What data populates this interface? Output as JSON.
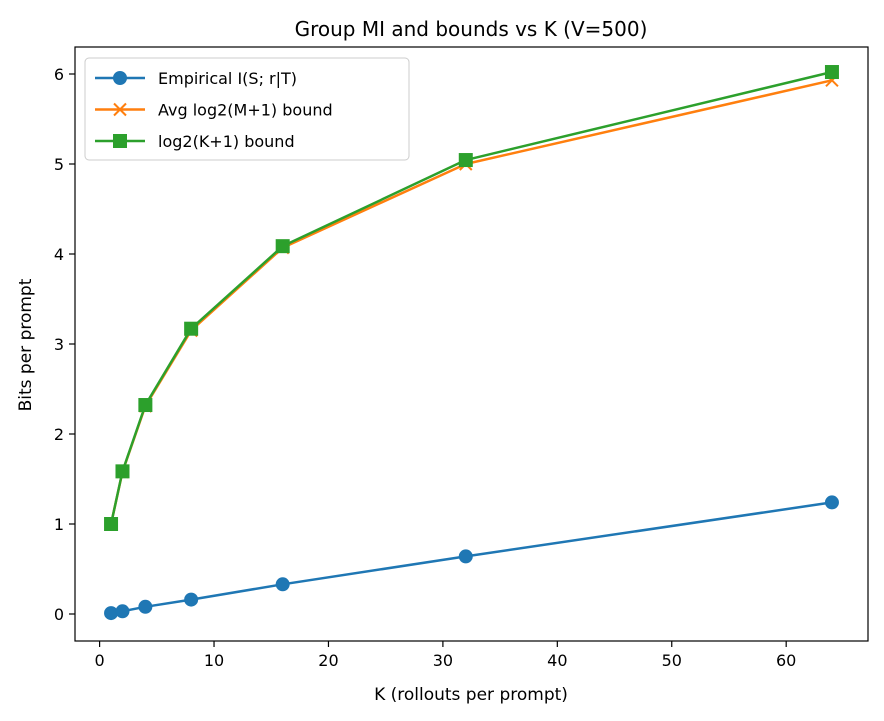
{
  "chart_data": {
    "type": "line",
    "title": "Group MI and bounds vs K (V=500)",
    "xlabel": "K (rollouts per prompt)",
    "ylabel": "Bits per prompt",
    "xlim": [
      -2.15,
      67.15
    ],
    "ylim": [
      -0.3,
      6.3
    ],
    "xticks": [
      0,
      10,
      20,
      30,
      40,
      50,
      60
    ],
    "yticks": [
      0,
      1,
      2,
      3,
      4,
      5,
      6
    ],
    "grid": false,
    "legend_position": "upper-left",
    "x": [
      1,
      2,
      4,
      8,
      16,
      32,
      64
    ],
    "series": [
      {
        "name": "Empirical I(S; r|T)",
        "color": "#1f77b4",
        "marker": "circle",
        "values": [
          0.01,
          0.03,
          0.08,
          0.16,
          0.33,
          0.64,
          1.24
        ]
      },
      {
        "name": "Avg log2(M+1) bound",
        "color": "#ff7f0e",
        "marker": "x",
        "values": [
          1.0,
          1.58,
          2.31,
          3.15,
          4.07,
          5.0,
          5.93
        ]
      },
      {
        "name": "log2(K+1) bound",
        "color": "#2ca02c",
        "marker": "square",
        "values": [
          1.0,
          1.585,
          2.322,
          3.17,
          4.087,
          5.044,
          6.022
        ]
      }
    ]
  }
}
